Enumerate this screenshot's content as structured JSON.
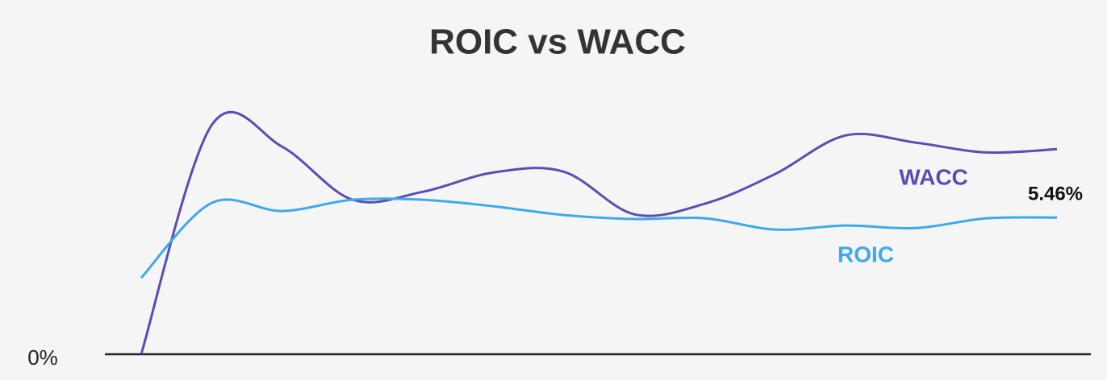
{
  "chart_data": {
    "type": "line",
    "title": "ROIC vs WACC",
    "categories": [
      null,
      null,
      null,
      null,
      null,
      null,
      null,
      null,
      null,
      null,
      null,
      null,
      null,
      null
    ],
    "series": [
      {
        "name": "WACC",
        "color": "#5a4db3",
        "values": [
          0,
          9.15,
          8.29,
          6.17,
          6.49,
          7.26,
          7.29,
          5.59,
          6.01,
          7.2,
          8.74,
          8.45,
          8.06,
          8.19
        ]
      },
      {
        "name": "ROIC",
        "color": "#3eaaea",
        "values": [
          3.05,
          6.04,
          5.72,
          6.17,
          6.17,
          5.91,
          5.56,
          5.4,
          5.43,
          4.98,
          5.14,
          5.04,
          5.43,
          5.46
        ],
        "value_labels": [
          null,
          null,
          null,
          null,
          null,
          null,
          null,
          null,
          null,
          null,
          null,
          null,
          null,
          "5.46%"
        ]
      }
    ],
    "ylim": [
      0,
      10
    ],
    "yticks": [
      {
        "value": 0,
        "label": "0%"
      }
    ]
  }
}
